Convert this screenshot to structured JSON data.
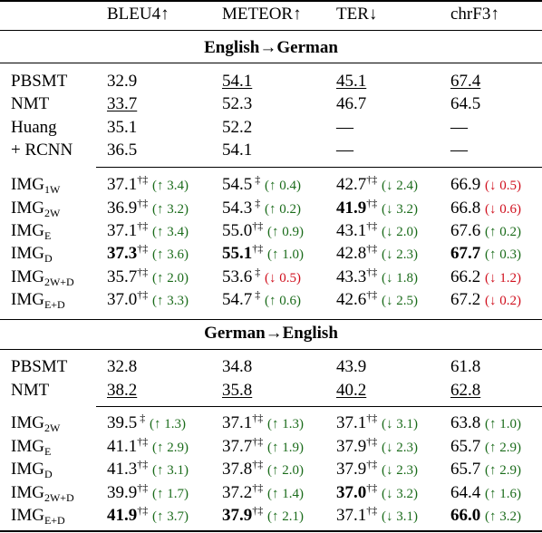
{
  "header": {
    "metrics": [
      "BLEU4↑",
      "METEOR↑",
      "TER↓",
      "chrF3↑"
    ]
  },
  "sections": [
    {
      "title": "English→German",
      "baseline_rows": [
        {
          "system": "PBSMT",
          "cells": [
            {
              "v": "32.9"
            },
            {
              "v": "54.1",
              "u": true
            },
            {
              "v": "45.1",
              "u": true
            },
            {
              "v": "67.4",
              "u": true
            }
          ]
        },
        {
          "system": "NMT",
          "cells": [
            {
              "v": "33.7",
              "u": true
            },
            {
              "v": "52.3"
            },
            {
              "v": "46.7"
            },
            {
              "v": "64.5"
            }
          ]
        },
        {
          "system": "Huang",
          "cells": [
            {
              "v": "35.1"
            },
            {
              "v": "52.2"
            },
            {
              "v": "—"
            },
            {
              "v": "—"
            }
          ]
        },
        {
          "system": "+ RCNN",
          "cells": [
            {
              "v": "36.5"
            },
            {
              "v": "54.1"
            },
            {
              "v": "—"
            },
            {
              "v": "—"
            }
          ]
        }
      ],
      "img_rows": [
        {
          "system": "IMG",
          "sub": "1W",
          "cells": [
            {
              "v": "37.1",
              "s": "†‡",
              "d": "(↑ 3.4)",
              "c": "g"
            },
            {
              "v": "54.5",
              "s": " ‡",
              "d": "(↑ 0.4)",
              "c": "g"
            },
            {
              "v": "42.7",
              "s": "†‡",
              "d": "(↓ 2.4)",
              "c": "g"
            },
            {
              "v": "66.9",
              "d": "(↓ 0.5)",
              "c": "r"
            }
          ]
        },
        {
          "system": "IMG",
          "sub": "2W",
          "cells": [
            {
              "v": "36.9",
              "s": "†‡",
              "d": "(↑ 3.2)",
              "c": "g"
            },
            {
              "v": "54.3",
              "s": " ‡",
              "d": "(↑ 0.2)",
              "c": "g"
            },
            {
              "v": "41.9",
              "s": "†‡",
              "d": "(↓ 3.2)",
              "c": "g",
              "b": true
            },
            {
              "v": "66.8",
              "d": "(↓ 0.6)",
              "c": "r"
            }
          ]
        },
        {
          "system": "IMG",
          "sub": "E",
          "cells": [
            {
              "v": "37.1",
              "s": "†‡",
              "d": "(↑ 3.4)",
              "c": "g"
            },
            {
              "v": "55.0",
              "s": "†‡",
              "d": "(↑ 0.9)",
              "c": "g"
            },
            {
              "v": "43.1",
              "s": "†‡",
              "d": "(↓ 2.0)",
              "c": "g"
            },
            {
              "v": "67.6",
              "d": "(↑ 0.2)",
              "c": "g"
            }
          ]
        },
        {
          "system": "IMG",
          "sub": "D",
          "cells": [
            {
              "v": "37.3",
              "s": "†‡",
              "d": "(↑ 3.6)",
              "c": "g",
              "b": true
            },
            {
              "v": "55.1",
              "s": "†‡",
              "d": "(↑ 1.0)",
              "c": "g",
              "b": true
            },
            {
              "v": "42.8",
              "s": "†‡",
              "d": "(↓ 2.3)",
              "c": "g"
            },
            {
              "v": "67.7",
              "d": "(↑ 0.3)",
              "c": "g",
              "b": true
            }
          ]
        },
        {
          "system": "IMG",
          "sub": "2W+D",
          "cells": [
            {
              "v": "35.7",
              "s": "†‡",
              "d": "(↑ 2.0)",
              "c": "g"
            },
            {
              "v": "53.6",
              "s": " ‡",
              "d": "(↓ 0.5)",
              "c": "r"
            },
            {
              "v": "43.3",
              "s": "†‡",
              "d": "(↓ 1.8)",
              "c": "g"
            },
            {
              "v": "66.2",
              "d": "(↓ 1.2)",
              "c": "r"
            }
          ]
        },
        {
          "system": "IMG",
          "sub": "E+D",
          "cells": [
            {
              "v": "37.0",
              "s": "†‡",
              "d": "(↑ 3.3)",
              "c": "g"
            },
            {
              "v": "54.7",
              "s": " ‡",
              "d": "(↑ 0.6)",
              "c": "g"
            },
            {
              "v": "42.6",
              "s": "†‡",
              "d": "(↓ 2.5)",
              "c": "g"
            },
            {
              "v": "67.2",
              "d": "(↓ 0.2)",
              "c": "r"
            }
          ]
        }
      ]
    },
    {
      "title": "German→English",
      "baseline_rows": [
        {
          "system": "PBSMT",
          "cells": [
            {
              "v": "32.8"
            },
            {
              "v": "34.8"
            },
            {
              "v": "43.9"
            },
            {
              "v": "61.8"
            }
          ]
        },
        {
          "system": "NMT",
          "cells": [
            {
              "v": "38.2",
              "u": true
            },
            {
              "v": "35.8",
              "u": true
            },
            {
              "v": "40.2",
              "u": true
            },
            {
              "v": "62.8",
              "u": true
            }
          ]
        }
      ],
      "img_rows": [
        {
          "system": "IMG",
          "sub": "2W",
          "cells": [
            {
              "v": "39.5",
              "s": " ‡",
              "d": "(↑ 1.3)",
              "c": "g"
            },
            {
              "v": "37.1",
              "s": "†‡",
              "d": "(↑ 1.3)",
              "c": "g"
            },
            {
              "v": "37.1",
              "s": "†‡",
              "d": "(↓ 3.1)",
              "c": "g"
            },
            {
              "v": "63.8",
              "d": "(↑ 1.0)",
              "c": "g"
            }
          ]
        },
        {
          "system": "IMG",
          "sub": "E",
          "cells": [
            {
              "v": "41.1",
              "s": "†‡",
              "d": "(↑ 2.9)",
              "c": "g"
            },
            {
              "v": "37.7",
              "s": "†‡",
              "d": "(↑ 1.9)",
              "c": "g"
            },
            {
              "v": "37.9",
              "s": "†‡",
              "d": "(↓ 2.3)",
              "c": "g"
            },
            {
              "v": "65.7",
              "d": "(↑ 2.9)",
              "c": "g"
            }
          ]
        },
        {
          "system": "IMG",
          "sub": "D",
          "cells": [
            {
              "v": "41.3",
              "s": "†‡",
              "d": "(↑ 3.1)",
              "c": "g"
            },
            {
              "v": "37.8",
              "s": "†‡",
              "d": "(↑ 2.0)",
              "c": "g"
            },
            {
              "v": "37.9",
              "s": "†‡",
              "d": "(↓ 2.3)",
              "c": "g"
            },
            {
              "v": "65.7",
              "d": "(↑ 2.9)",
              "c": "g"
            }
          ]
        },
        {
          "system": "IMG",
          "sub": "2W+D",
          "cells": [
            {
              "v": "39.9",
              "s": "†‡",
              "d": "(↑ 1.7)",
              "c": "g"
            },
            {
              "v": "37.2",
              "s": "†‡",
              "d": "(↑ 1.4)",
              "c": "g"
            },
            {
              "v": "37.0",
              "s": "†‡",
              "d": "(↓ 3.2)",
              "c": "g",
              "b": true
            },
            {
              "v": "64.4",
              "d": "(↑ 1.6)",
              "c": "g"
            }
          ]
        },
        {
          "system": "IMG",
          "sub": "E+D",
          "cells": [
            {
              "v": "41.9",
              "s": "†‡",
              "d": "(↑ 3.7)",
              "c": "g",
              "b": true
            },
            {
              "v": "37.9",
              "s": "†‡",
              "d": "(↑ 2.1)",
              "c": "g",
              "b": true
            },
            {
              "v": "37.1",
              "s": "†‡",
              "d": "(↓ 3.1)",
              "c": "g"
            },
            {
              "v": "66.0",
              "d": "(↑ 3.2)",
              "c": "g",
              "b": true
            }
          ]
        }
      ]
    }
  ],
  "colors": {
    "increase_good": "#1a6b1a",
    "decrease_bad": "#d0101e"
  }
}
